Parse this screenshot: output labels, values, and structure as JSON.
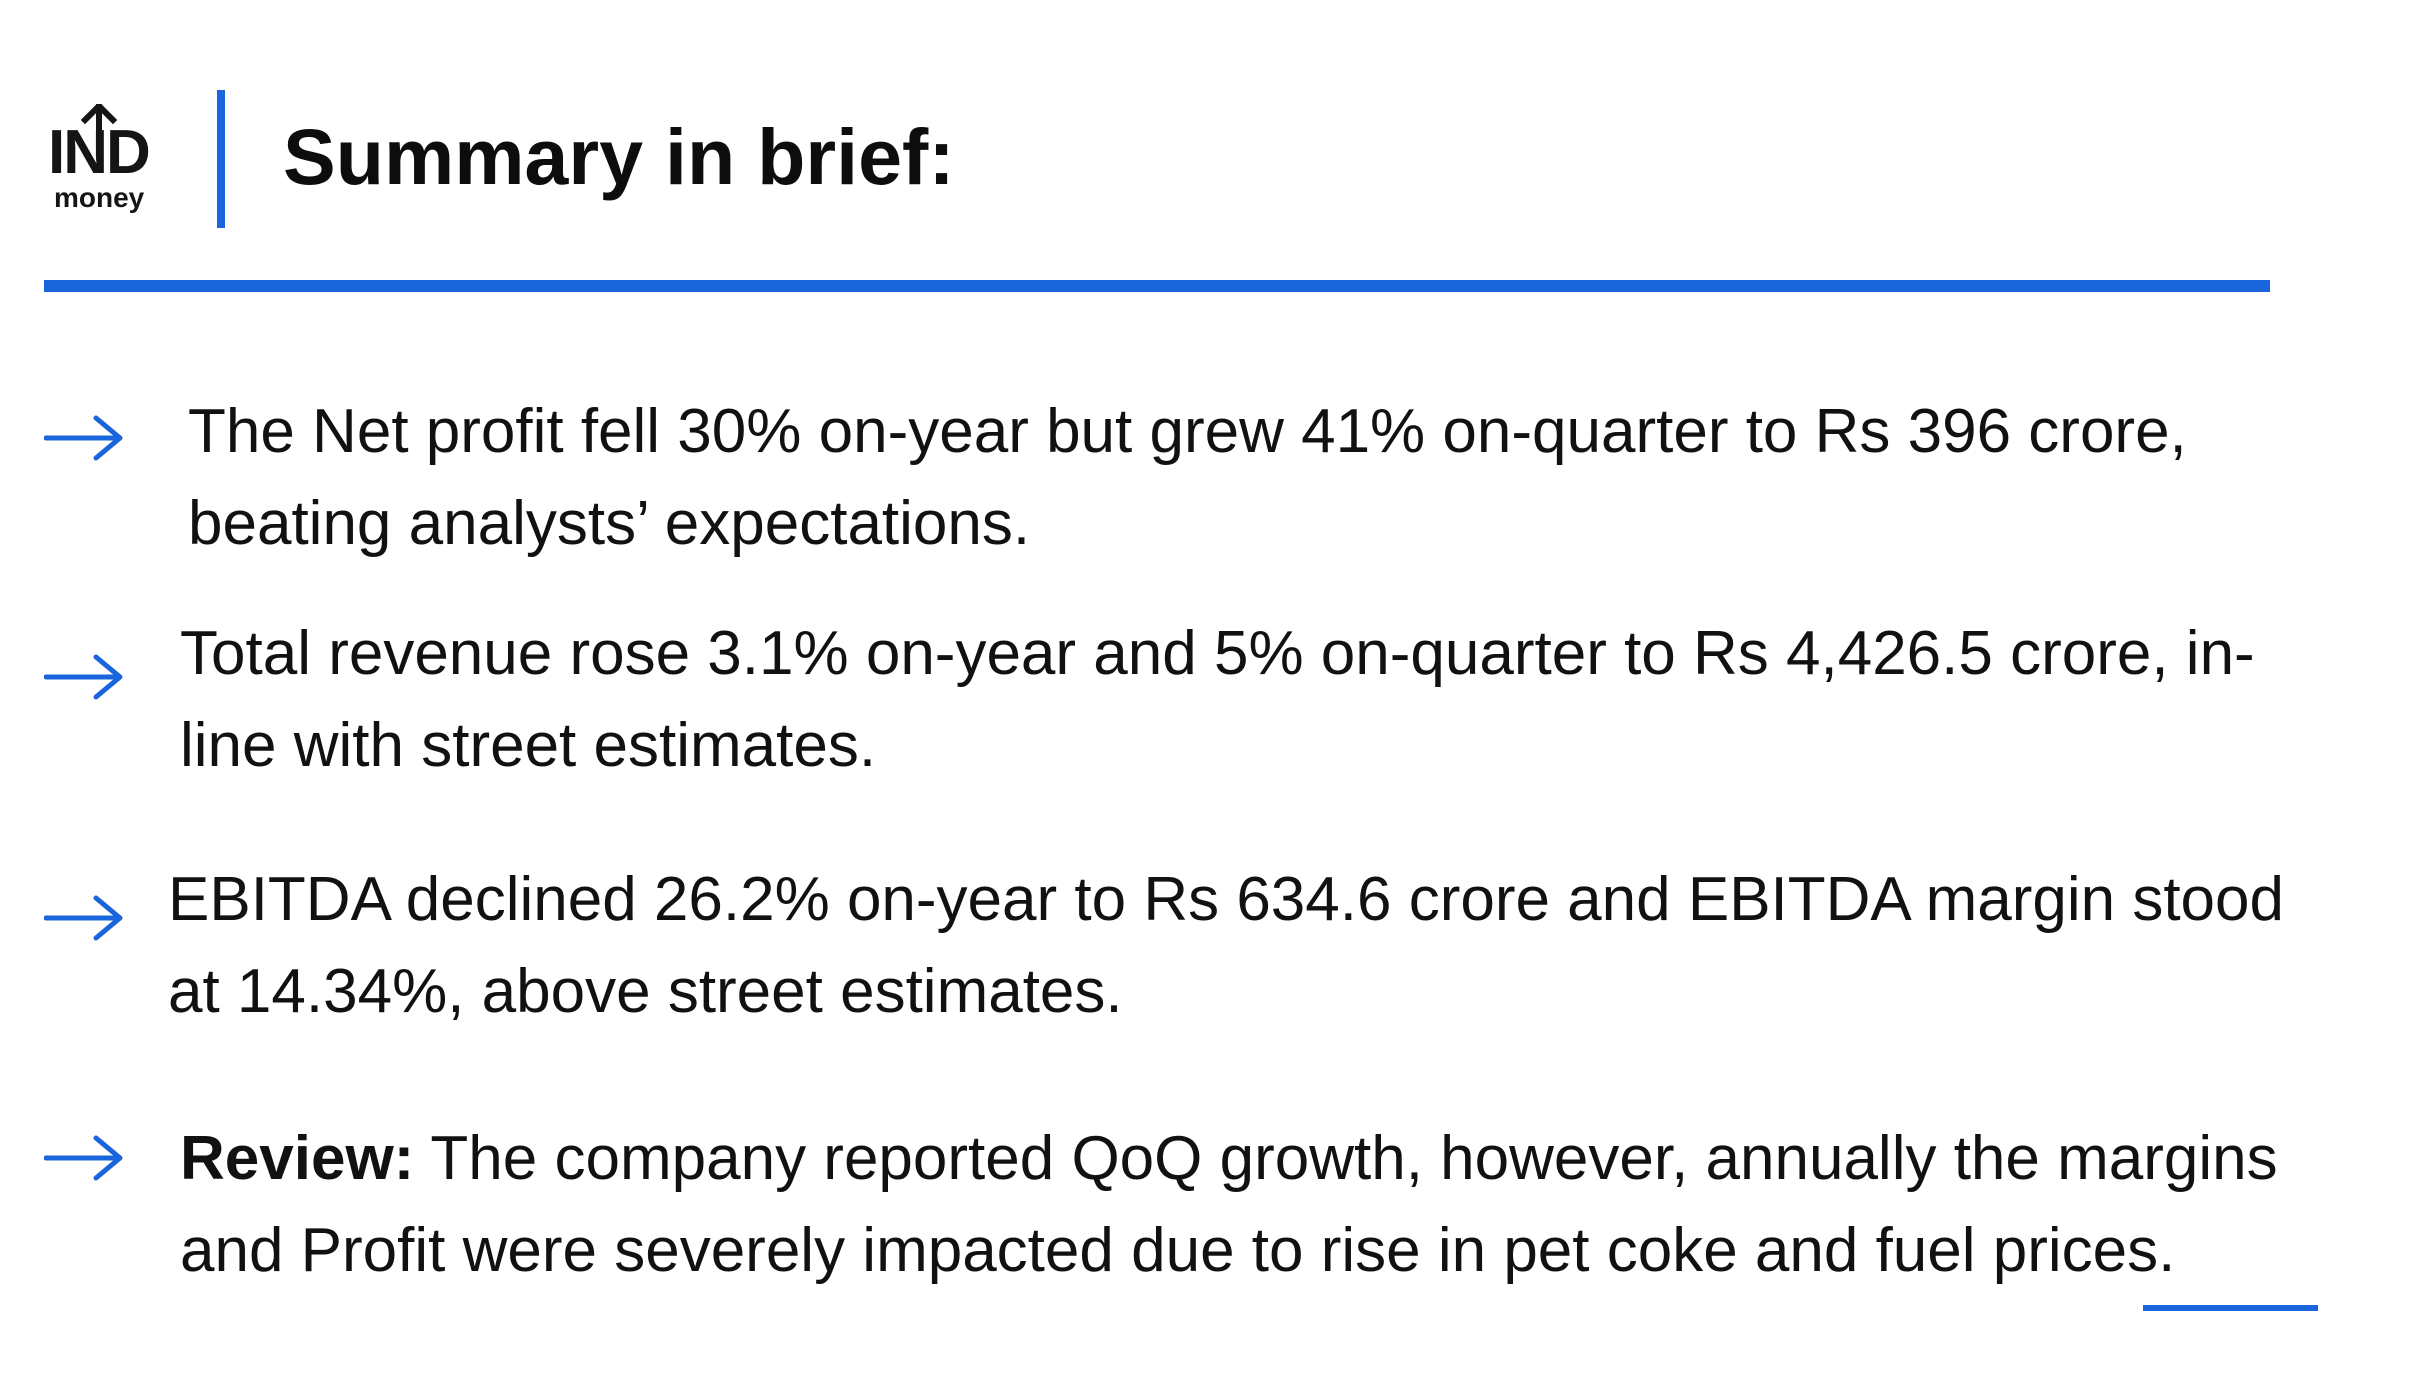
{
  "logo": {
    "top_text": "IND",
    "bottom_text": "money",
    "icon": "up-arrow-icon"
  },
  "header": {
    "title": "Summary in brief:"
  },
  "colors": {
    "accent": "#1a64dc",
    "text": "#111111"
  },
  "bullets": [
    {
      "icon": "right-arrow-icon",
      "label": "",
      "text": "The Net profit fell 30% on-year but grew 41% on-quarter to Rs 396 crore, beating analysts’ expectations."
    },
    {
      "icon": "right-arrow-icon",
      "label": "",
      "text": "Total revenue rose 3.1% on-year and 5% on-quarter to Rs 4,426.5 crore, in-line with street estimates."
    },
    {
      "icon": "right-arrow-icon",
      "label": "",
      "text": "EBITDA declined 26.2% on-year to Rs 634.6 crore and EBITDA margin stood at 14.34%, above street estimates."
    },
    {
      "icon": "right-arrow-icon",
      "label": "Review:",
      "text": " The company reported QoQ growth, however, annually the margins and Profit were severely impacted due to rise in pet coke and fuel prices."
    }
  ]
}
